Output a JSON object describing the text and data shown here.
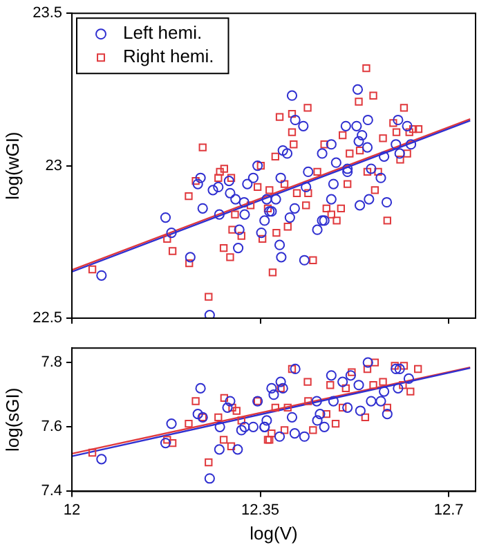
{
  "chart_data": [
    {
      "type": "scatter",
      "ylabel": "log(wGI)",
      "xlim": [
        12,
        12.75
      ],
      "xticks": [
        {
          "value": 12,
          "label": null
        },
        {
          "value": 12.35,
          "label": null
        },
        {
          "value": 12.7,
          "label": null
        }
      ],
      "ylim": [
        22.5,
        23.5
      ],
      "yticks": [
        22.5,
        23,
        23.5
      ],
      "tick_labels": "y",
      "grid": false,
      "legend": "top left",
      "series": [
        {
          "name": "Left hemi.",
          "color": "#2f2fd0",
          "marker": "circle",
          "x": [
            12.055,
            12.174,
            12.185,
            12.22,
            12.243,
            12.239,
            12.234,
            12.256,
            12.274,
            12.262,
            12.272,
            12.294,
            12.292,
            12.304,
            12.309,
            12.311,
            12.321,
            12.32,
            12.326,
            12.337,
            12.345,
            12.358,
            12.352,
            12.362,
            12.371,
            12.409,
            12.415,
            12.43,
            12.392,
            12.4,
            12.388,
            12.379,
            12.367,
            12.386,
            12.389,
            12.414,
            12.405,
            12.432,
            12.435,
            12.439,
            12.456,
            12.465,
            12.469,
            12.482,
            12.465,
            12.482,
            12.486,
            12.491,
            12.512,
            12.509,
            12.529,
            12.531,
            12.533,
            12.539,
            12.55,
            12.549,
            12.556,
            12.535,
            12.552,
            12.574,
            12.58,
            12.585,
            12.602,
            12.606,
            12.609,
            12.623,
            12.63,
            12.512
          ],
          "values": [
            22.64,
            22.83,
            22.78,
            22.7,
            22.86,
            22.96,
            22.94,
            22.51,
            22.84,
            22.92,
            22.93,
            22.91,
            22.95,
            22.89,
            22.73,
            22.79,
            22.84,
            22.88,
            22.94,
            22.96,
            23.0,
            22.82,
            22.78,
            22.89,
            22.85,
            23.23,
            23.15,
            23.13,
            23.05,
            23.04,
            22.96,
            22.89,
            22.85,
            22.74,
            22.7,
            22.86,
            22.83,
            22.69,
            22.93,
            22.98,
            22.79,
            22.82,
            22.82,
            23.07,
            23.04,
            22.89,
            22.94,
            23.01,
            22.99,
            23.13,
            23.13,
            23.25,
            23.08,
            23.1,
            23.15,
            23.06,
            22.99,
            22.87,
            22.89,
            22.96,
            23.03,
            22.88,
            23.07,
            23.15,
            23.04,
            23.13,
            23.07,
            22.98
          ]
        },
        {
          "name": "Right hemi.",
          "color": "#e0383c",
          "marker": "square",
          "x": [
            12.038,
            12.177,
            12.187,
            12.217,
            12.218,
            12.243,
            12.23,
            12.254,
            12.272,
            12.275,
            12.283,
            12.296,
            12.303,
            12.298,
            12.282,
            12.294,
            12.315,
            12.332,
            12.345,
            12.351,
            12.354,
            12.373,
            12.378,
            12.364,
            12.386,
            12.438,
            12.409,
            12.409,
            12.412,
            12.448,
            12.367,
            12.395,
            12.418,
            12.439,
            12.435,
            12.401,
            12.38,
            12.456,
            12.469,
            12.473,
            12.482,
            12.492,
            12.5,
            12.503,
            12.512,
            12.516,
            12.535,
            12.533,
            12.547,
            12.56,
            12.549,
            12.563,
            12.569,
            12.578,
            12.586,
            12.597,
            12.603,
            12.617,
            12.627,
            12.634,
            12.644,
            12.623,
            12.61
          ],
          "values": [
            22.66,
            22.76,
            22.72,
            22.9,
            22.68,
            23.06,
            22.95,
            22.57,
            22.96,
            22.98,
            22.99,
            22.96,
            22.84,
            22.79,
            22.73,
            22.7,
            22.77,
            22.87,
            22.93,
            23.0,
            22.76,
            22.65,
            23.03,
            22.86,
            23.16,
            23.19,
            23.17,
            23.11,
            23.07,
            22.69,
            22.92,
            22.94,
            22.91,
            22.91,
            22.87,
            22.8,
            22.78,
            22.98,
            23.07,
            22.86,
            22.84,
            22.82,
            22.86,
            23.1,
            22.94,
            23.04,
            23.05,
            23.21,
            23.32,
            23.23,
            22.98,
            22.92,
            22.98,
            23.09,
            22.82,
            23.14,
            23.11,
            23.19,
            23.11,
            23.12,
            23.12,
            23.04,
            23.02
          ]
        },
        {
          "type": "line",
          "color": "#2f2fd0",
          "marker": "none",
          "line_style": "solid",
          "x": [
            12,
            12.74
          ],
          "values": [
            22.652,
            23.148
          ]
        },
        {
          "type": "line",
          "color": "#e0383c",
          "marker": "none",
          "line_style": "solid",
          "x": [
            12,
            12.74
          ],
          "values": [
            22.658,
            23.153
          ]
        }
      ]
    },
    {
      "type": "scatter",
      "xlabel": "log(V)",
      "ylabel": "log(sGI)",
      "xlim": [
        12,
        12.75
      ],
      "xticks": [
        12,
        12.35,
        12.7
      ],
      "ylim": [
        7.4,
        7.845
      ],
      "yticks": [
        7.4,
        7.6,
        7.8
      ],
      "grid": false,
      "series": [
        {
          "color": "#2f2fd0",
          "marker": "circle",
          "x": [
            12.055,
            12.185,
            12.174,
            12.239,
            12.234,
            12.243,
            12.256,
            12.274,
            12.275,
            12.289,
            12.294,
            12.308,
            12.315,
            12.321,
            12.337,
            12.345,
            12.358,
            12.371,
            12.386,
            12.414,
            12.432,
            12.388,
            12.392,
            12.375,
            12.358,
            12.362,
            12.409,
            12.415,
            12.455,
            12.461,
            12.469,
            12.482,
            12.486,
            12.503,
            12.512,
            12.533,
            12.536,
            12.55,
            12.556,
            12.574,
            12.58,
            12.586,
            12.602,
            12.609,
            12.626,
            12.606,
            12.456,
            12.518
          ],
          "values": [
            7.5,
            7.61,
            7.55,
            7.72,
            7.64,
            7.63,
            7.44,
            7.53,
            7.6,
            7.66,
            7.68,
            7.53,
            7.59,
            7.6,
            7.6,
            7.68,
            7.6,
            7.72,
            7.57,
            7.58,
            7.57,
            7.74,
            7.72,
            7.7,
            7.6,
            7.62,
            7.63,
            7.78,
            7.68,
            7.64,
            7.6,
            7.76,
            7.68,
            7.74,
            7.66,
            7.73,
            7.65,
            7.8,
            7.68,
            7.68,
            7.71,
            7.64,
            7.78,
            7.78,
            7.75,
            7.72,
            7.62,
            7.76
          ]
        },
        {
          "color": "#e0383c",
          "marker": "square",
          "x": [
            12.038,
            12.177,
            12.187,
            12.217,
            12.23,
            12.243,
            12.254,
            12.272,
            12.282,
            12.283,
            12.296,
            12.298,
            12.306,
            12.315,
            12.345,
            12.364,
            12.371,
            12.367,
            12.395,
            12.448,
            12.409,
            12.388,
            12.378,
            12.401,
            12.438,
            12.439,
            12.473,
            12.48,
            12.49,
            12.503,
            12.509,
            12.52,
            12.545,
            12.549,
            12.563,
            12.56,
            12.578,
            12.586,
            12.6,
            12.617,
            12.629,
            12.643,
            12.615
          ],
          "values": [
            7.52,
            7.56,
            7.55,
            7.61,
            7.68,
            7.63,
            7.49,
            7.63,
            7.56,
            7.69,
            7.54,
            7.66,
            7.65,
            7.62,
            7.68,
            7.56,
            7.58,
            7.56,
            7.59,
            7.59,
            7.78,
            7.72,
            7.66,
            7.66,
            7.74,
            7.68,
            7.64,
            7.73,
            7.61,
            7.66,
            7.72,
            7.77,
            7.63,
            7.78,
            7.8,
            7.73,
            7.74,
            7.66,
            7.79,
            7.79,
            7.71,
            7.78,
            7.73
          ]
        },
        {
          "type": "line",
          "color": "#2f2fd0",
          "marker": "none",
          "line_style": "solid",
          "x": [
            12,
            12.74
          ],
          "values": [
            7.509,
            7.783
          ]
        },
        {
          "type": "line",
          "color": "#e0383c",
          "marker": "none",
          "line_style": "solid",
          "x": [
            12,
            12.74
          ],
          "values": [
            7.517,
            7.785
          ]
        }
      ]
    }
  ]
}
